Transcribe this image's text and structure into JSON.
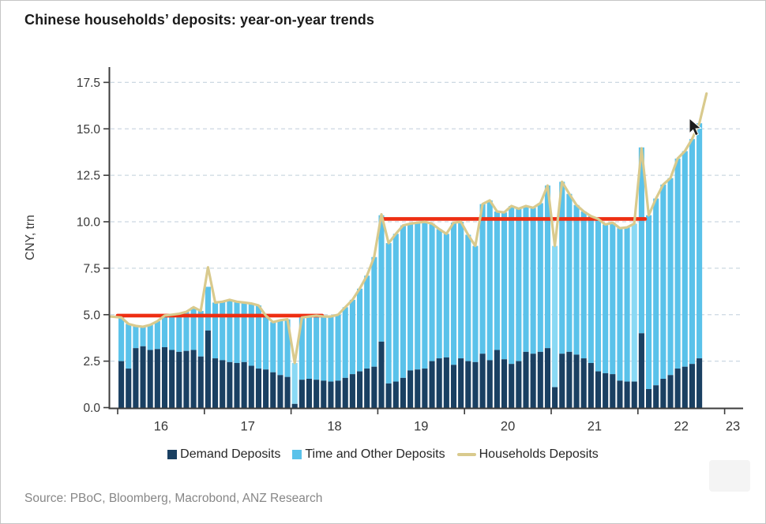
{
  "header": {
    "title": "Chinese households’ deposits: year-on-year trends"
  },
  "source_note": "Source: PBoC, Bloomberg, Macrobond, ANZ Research",
  "legend": {
    "items": [
      {
        "label": "Demand Deposits",
        "marker": "square",
        "color": "#1a4062"
      },
      {
        "label": "Time and Other Deposits",
        "marker": "square",
        "color": "#5ac2ea"
      },
      {
        "label": "Households Deposits",
        "marker": "line",
        "color": "#d9ca8d"
      }
    ]
  },
  "colors": {
    "demand_bar": "#1a4062",
    "time_other_bar": "#5ac2ea",
    "time_other_highlight": "#8ad9f4",
    "households_line": "#d9ca8d",
    "reference_line": "#ee2e12",
    "grid": "#ccd8e2",
    "axis": "#3c3c3c",
    "tick_text": "#383838",
    "title_text": "#1b1b1b",
    "source_text": "#878787"
  },
  "chart_data": {
    "type": "bar",
    "subtype": "stacked monthly bars with overlaid line and red reference segments",
    "title": "Chinese households’ deposits: year-on-year trends",
    "ylabel": "CNY, trn",
    "ylim": [
      0,
      18.3
    ],
    "grid": "horizontal-dashed",
    "legend_position": "bottom",
    "y_ticks": [
      "0.0",
      "2.5",
      "5.0",
      "7.5",
      "10.0",
      "12.5",
      "15.0",
      "17.5"
    ],
    "x_tick_labels": [
      "16",
      "17",
      "18",
      "19",
      "20",
      "21",
      "22",
      "23"
    ],
    "x_range": "monthly, Jan 2016 – Sep 2022 (bars); line extends one extra month",
    "series": [
      {
        "name": "Demand Deposits",
        "values": [
          2.5,
          2.1,
          3.2,
          3.3,
          3.1,
          3.15,
          3.25,
          3.1,
          3.0,
          3.05,
          3.1,
          2.75,
          4.15,
          2.65,
          2.55,
          2.45,
          2.4,
          2.45,
          2.25,
          2.1,
          2.05,
          1.9,
          1.75,
          1.65,
          0.2,
          1.5,
          1.55,
          1.5,
          1.45,
          1.4,
          1.45,
          1.6,
          1.8,
          1.95,
          2.1,
          2.2,
          3.55,
          1.3,
          1.4,
          1.6,
          2.0,
          2.05,
          2.1,
          2.5,
          2.65,
          2.7,
          2.3,
          2.65,
          2.5,
          2.45,
          2.9,
          2.55,
          3.1,
          2.6,
          2.35,
          2.5,
          3.0,
          2.9,
          3.0,
          3.2,
          1.1,
          2.9,
          3.0,
          2.85,
          2.65,
          2.4,
          1.95,
          1.85,
          1.8,
          1.45,
          1.4,
          1.4,
          4.0,
          1.0,
          1.2,
          1.55,
          1.75,
          2.1,
          2.2,
          2.35,
          2.65
        ]
      },
      {
        "name": "Time and Other Deposits",
        "values": [
          2.35,
          2.4,
          1.2,
          1.05,
          1.35,
          1.5,
          1.7,
          1.9,
          2.05,
          2.1,
          2.3,
          2.45,
          2.35,
          3.0,
          3.15,
          3.35,
          3.3,
          3.2,
          3.35,
          3.4,
          2.9,
          2.7,
          2.95,
          3.1,
          2.2,
          3.35,
          3.35,
          3.45,
          3.45,
          3.5,
          3.55,
          3.8,
          4.0,
          4.45,
          5.0,
          5.9,
          6.8,
          7.55,
          7.95,
          8.2,
          7.9,
          7.9,
          7.9,
          7.4,
          6.95,
          6.65,
          7.65,
          7.35,
          6.8,
          6.25,
          8.05,
          8.6,
          7.45,
          7.9,
          8.5,
          8.2,
          7.85,
          7.85,
          8.0,
          8.75,
          7.6,
          9.25,
          8.5,
          8.05,
          7.9,
          7.9,
          8.2,
          8.0,
          8.15,
          8.2,
          8.3,
          8.5,
          10.0,
          9.35,
          10.05,
          10.45,
          10.6,
          11.3,
          11.6,
          12.1,
          12.65
        ]
      }
    ],
    "line_series": {
      "name": "Households Deposits",
      "values": [
        4.85,
        4.5,
        4.4,
        4.35,
        4.45,
        4.65,
        4.95,
        5.0,
        5.05,
        5.15,
        5.4,
        5.2,
        7.55,
        5.65,
        5.7,
        5.8,
        5.7,
        5.65,
        5.6,
        5.5,
        4.95,
        4.6,
        4.7,
        4.75,
        2.4,
        4.85,
        4.9,
        4.95,
        4.9,
        4.9,
        5.0,
        5.4,
        5.8,
        6.4,
        7.1,
        8.1,
        10.4,
        8.85,
        9.35,
        9.8,
        9.9,
        9.95,
        10.0,
        9.9,
        9.6,
        9.35,
        9.95,
        10.0,
        9.3,
        8.7,
        10.95,
        11.15,
        10.55,
        10.5,
        10.85,
        10.7,
        10.85,
        10.75,
        11.0,
        11.95,
        8.7,
        12.15,
        11.5,
        10.9,
        10.55,
        10.3,
        10.15,
        9.85,
        9.95,
        9.65,
        9.7,
        9.9,
        13.95,
        10.35,
        11.25,
        12.0,
        12.35,
        13.4,
        13.8,
        14.45,
        15.3,
        16.9
      ]
    },
    "highlight_bar_indices": [
      24,
      60,
      71
    ],
    "reference_lines": [
      {
        "value": 4.95,
        "from_month": -0.5,
        "to_month": 28.3
      },
      {
        "value": 10.15,
        "from_month": 36.2,
        "to_month": 73.0
      }
    ],
    "cursor_visible": true
  }
}
